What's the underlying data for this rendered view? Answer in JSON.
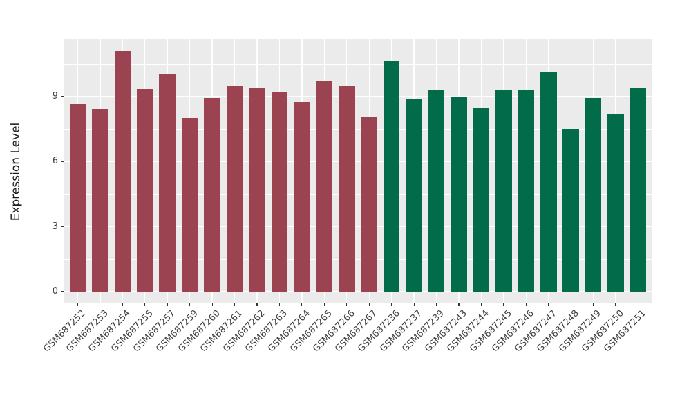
{
  "chart_data": {
    "type": "bar",
    "title": "",
    "xlabel": "",
    "ylabel": "Expression Level",
    "yticks": [
      0,
      3,
      6,
      9
    ],
    "ylim": [
      -0.55,
      11.64
    ],
    "grid": true,
    "legend": "none",
    "panel_bg": "#EBEBEB",
    "grid_color": "#FFFFFF",
    "axis_text_color": "#404040",
    "group_colors": {
      "group1": "#9B4351",
      "group2": "#026B49"
    },
    "bars": [
      {
        "label": "GSM687252",
        "value": 8.65,
        "color": "#9B4351"
      },
      {
        "label": "GSM687253",
        "value": 8.44,
        "color": "#9B4351"
      },
      {
        "label": "GSM687254",
        "value": 11.1,
        "color": "#9B4351"
      },
      {
        "label": "GSM687255",
        "value": 9.35,
        "color": "#9B4351"
      },
      {
        "label": "GSM687257",
        "value": 10.01,
        "color": "#9B4351"
      },
      {
        "label": "GSM687259",
        "value": 8.01,
        "color": "#9B4351"
      },
      {
        "label": "GSM687260",
        "value": 8.93,
        "color": "#9B4351"
      },
      {
        "label": "GSM687261",
        "value": 9.5,
        "color": "#9B4351"
      },
      {
        "label": "GSM687262",
        "value": 9.42,
        "color": "#9B4351"
      },
      {
        "label": "GSM687263",
        "value": 9.22,
        "color": "#9B4351"
      },
      {
        "label": "GSM687264",
        "value": 8.74,
        "color": "#9B4351"
      },
      {
        "label": "GSM687265",
        "value": 9.72,
        "color": "#9B4351"
      },
      {
        "label": "GSM687266",
        "value": 9.5,
        "color": "#9B4351"
      },
      {
        "label": "GSM687267",
        "value": 8.05,
        "color": "#9B4351"
      },
      {
        "label": "GSM687236",
        "value": 10.66,
        "color": "#026B49"
      },
      {
        "label": "GSM687237",
        "value": 8.9,
        "color": "#026B49"
      },
      {
        "label": "GSM687239",
        "value": 9.32,
        "color": "#026B49"
      },
      {
        "label": "GSM687243",
        "value": 9.0,
        "color": "#026B49"
      },
      {
        "label": "GSM687244",
        "value": 8.5,
        "color": "#026B49"
      },
      {
        "label": "GSM687245",
        "value": 9.29,
        "color": "#026B49"
      },
      {
        "label": "GSM687246",
        "value": 9.32,
        "color": "#026B49"
      },
      {
        "label": "GSM687247",
        "value": 10.14,
        "color": "#026B49"
      },
      {
        "label": "GSM687248",
        "value": 7.52,
        "color": "#026B49"
      },
      {
        "label": "GSM687249",
        "value": 8.94,
        "color": "#026B49"
      },
      {
        "label": "GSM687250",
        "value": 8.17,
        "color": "#026B49"
      },
      {
        "label": "GSM687251",
        "value": 9.4,
        "color": "#026B49"
      }
    ]
  }
}
